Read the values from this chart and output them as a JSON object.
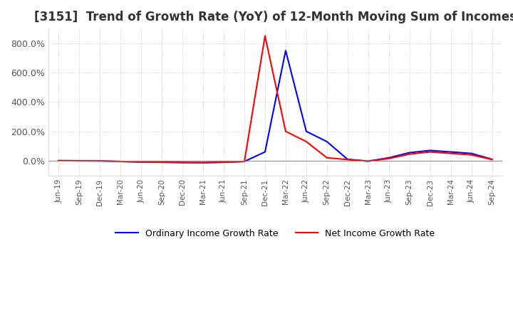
{
  "title": "[3151]  Trend of Growth Rate (YoY) of 12-Month Moving Sum of Incomes",
  "title_fontsize": 12,
  "line_ordinary_color": "#0000FF",
  "line_net_color": "#FF0000",
  "legend_ordinary": "Ordinary Income Growth Rate",
  "legend_net": "Net Income Growth Rate",
  "background_color": "#FFFFFF",
  "plot_bg_color": "#FFFFFF",
  "grid_color": "#AAAAAA",
  "dates": [
    "Jun-19",
    "Sep-19",
    "Dec-19",
    "Mar-20",
    "Jun-20",
    "Sep-20",
    "Dec-20",
    "Mar-21",
    "Jun-21",
    "Sep-21",
    "Dec-21",
    "Mar-22",
    "Jun-22",
    "Sep-22",
    "Dec-22",
    "Mar-23",
    "Jun-23",
    "Sep-23",
    "Dec-23",
    "Mar-24",
    "Jun-24",
    "Sep-24"
  ],
  "ordinary_income_growth": [
    0.5,
    -0.5,
    -1.0,
    -5.0,
    -8.0,
    -10.0,
    -12.0,
    -13.0,
    -10.0,
    -5.0,
    60.0,
    750.0,
    200.0,
    130.0,
    10.0,
    -3.0,
    20.0,
    55.0,
    70.0,
    60.0,
    50.0,
    10.0
  ],
  "net_income_growth": [
    0.5,
    -0.5,
    -1.0,
    -5.0,
    -8.0,
    -10.0,
    -12.0,
    -13.0,
    -10.0,
    -5.0,
    850.0,
    200.0,
    130.0,
    20.0,
    8.0,
    -3.0,
    15.0,
    45.0,
    60.0,
    50.0,
    40.0,
    8.0
  ],
  "ytick_labels": [
    "0.0%",
    "200.0%",
    "400.0%",
    "600.0%",
    "800.0%"
  ],
  "ytick_values": [
    0,
    200,
    400,
    600,
    800
  ],
  "ylim": [
    -100,
    900
  ],
  "xlim_min": -0.5,
  "xlim_max": 21.5
}
